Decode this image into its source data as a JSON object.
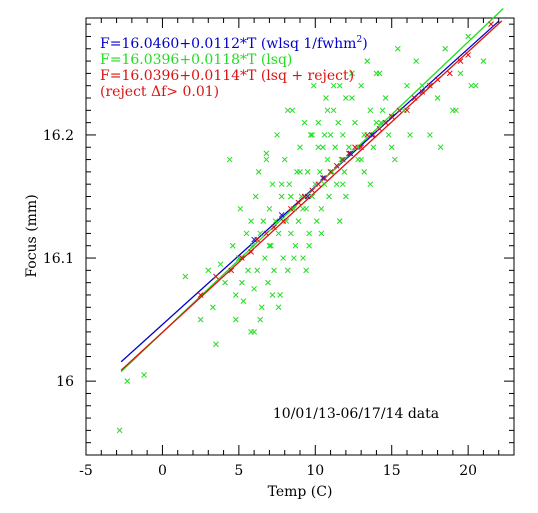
{
  "chart_data": {
    "type": "scatter",
    "xlabel": "Temp (C)",
    "ylabel": "Focus (mm)",
    "xlim": [
      -5,
      23
    ],
    "ylim": [
      15.94,
      16.295
    ],
    "x_ticks": [
      -5,
      0,
      5,
      10,
      15,
      20
    ],
    "y_ticks": [
      16,
      16.1,
      16.2
    ],
    "y_tick_labels": [
      "16",
      "16.1",
      "16.2"
    ],
    "legend": [
      {
        "text": "F=16.0460+0.0112*T (wlsq 1/fwhm",
        "sup": "2",
        "tail": ")",
        "color": "#0000cc"
      },
      {
        "text": "F=16.0396+0.0118*T (lsq)",
        "sup": "",
        "tail": "",
        "color": "#22dd22"
      },
      {
        "text": "F=16.0396+0.0114*T (lsq + reject)",
        "sup": "",
        "tail": "",
        "color": "#dd1111"
      },
      {
        "text": "(reject Δf> 0.01)",
        "sup": "",
        "tail": "",
        "color": "#dd1111"
      }
    ],
    "annotation": "10/01/13-06/17/14 data",
    "lines": [
      {
        "name": "F=16.0460+0.0112*T (wlsq 1/fwhm2)",
        "color": "#0000cc",
        "intercept": 16.046,
        "slope": 0.0112,
        "x_range": [
          -2.7,
          22
        ]
      },
      {
        "name": "F=16.0396+0.0118*T (lsq)",
        "color": "#22dd22",
        "intercept": 16.0396,
        "slope": 0.0118,
        "x_range": [
          -2.7,
          22.3
        ]
      },
      {
        "name": "F=16.0396+0.0114*T (lsq + reject)",
        "color": "#dd1111",
        "intercept": 16.0396,
        "slope": 0.0114,
        "x_range": [
          -2.7,
          22.2
        ]
      }
    ],
    "series": [
      {
        "color": "#22dd22",
        "x": [
          -2.8,
          -2.3,
          -1.2,
          1.5,
          2.5,
          3.0,
          3.3,
          3.8,
          4.1,
          4.4,
          4.8,
          5.0,
          5.1,
          5.3,
          5.5,
          5.6,
          5.8,
          5.9,
          6.0,
          6.1,
          6.2,
          6.3,
          6.4,
          6.5,
          6.6,
          6.7,
          6.8,
          6.9,
          7.0,
          7.1,
          7.2,
          7.3,
          7.4,
          7.5,
          7.6,
          7.7,
          7.8,
          7.9,
          8.0,
          8.1,
          8.2,
          8.3,
          8.4,
          8.5,
          8.6,
          8.7,
          8.8,
          8.9,
          9.0,
          9.1,
          9.2,
          9.3,
          9.4,
          9.5,
          9.6,
          9.7,
          9.8,
          9.9,
          10.0,
          10.1,
          10.2,
          10.3,
          10.4,
          10.5,
          10.6,
          10.7,
          10.8,
          10.9,
          11.0,
          11.1,
          11.2,
          11.3,
          11.4,
          11.5,
          11.6,
          11.7,
          11.8,
          11.9,
          12.0,
          12.2,
          12.4,
          12.6,
          12.8,
          13.0,
          13.2,
          13.4,
          13.6,
          13.8,
          14.0,
          14.3,
          14.6,
          15.0,
          15.4,
          15.8,
          16.2,
          16.6,
          17.0,
          17.5,
          18.0,
          18.5,
          19.0,
          19.5,
          20.0,
          20.5,
          21.0,
          5.2,
          6.4,
          7.0,
          7.8,
          8.6,
          9.2,
          9.8,
          10.4,
          11.2,
          12.0,
          12.8,
          13.6,
          14.4,
          15.2,
          16.0,
          4.6,
          5.8,
          6.8,
          7.6,
          8.4,
          9.0,
          9.6,
          10.2,
          10.8,
          11.6,
          12.4,
          13.2,
          14.0,
          14.8,
          6.0,
          7.2,
          8.2,
          9.4,
          10.6,
          11.8,
          13.0,
          14.2,
          3.5,
          4.8,
          18.2,
          19.2,
          20.2
        ],
        "y": [
          15.96,
          16.0,
          16.005,
          16.085,
          16.05,
          16.09,
          16.06,
          16.095,
          16.08,
          16.18,
          16.07,
          16.1,
          16.14,
          16.065,
          16.12,
          16.09,
          16.04,
          16.11,
          16.075,
          16.15,
          16.09,
          16.17,
          16.12,
          16.06,
          16.13,
          16.1,
          16.185,
          16.08,
          16.14,
          16.11,
          16.16,
          16.09,
          16.13,
          16.2,
          16.12,
          16.07,
          16.15,
          16.1,
          16.18,
          16.13,
          16.09,
          16.16,
          16.12,
          16.22,
          16.14,
          16.11,
          16.17,
          16.13,
          16.19,
          16.15,
          16.1,
          16.21,
          16.14,
          16.17,
          16.12,
          16.2,
          16.15,
          16.24,
          16.16,
          16.13,
          16.21,
          16.17,
          16.14,
          16.19,
          16.16,
          16.23,
          16.18,
          16.15,
          16.2,
          16.17,
          16.22,
          16.19,
          16.16,
          16.21,
          16.24,
          16.18,
          16.2,
          16.17,
          16.23,
          16.19,
          16.25,
          16.21,
          16.18,
          16.24,
          16.2,
          16.26,
          16.22,
          16.19,
          16.25,
          16.21,
          16.23,
          16.19,
          16.27,
          16.22,
          16.2,
          16.26,
          16.24,
          16.2,
          16.23,
          16.27,
          16.22,
          16.25,
          16.28,
          16.24,
          16.26,
          16.08,
          16.05,
          16.11,
          16.16,
          16.1,
          16.14,
          16.2,
          16.12,
          16.24,
          16.15,
          16.19,
          16.16,
          16.22,
          16.18,
          16.24,
          16.11,
          16.13,
          16.18,
          16.06,
          16.15,
          16.17,
          16.11,
          16.19,
          16.22,
          16.13,
          16.23,
          16.17,
          16.21,
          16.2,
          16.04,
          16.07,
          16.22,
          16.09,
          16.2,
          16.16,
          16.18,
          16.25,
          16.03,
          16.05,
          16.19,
          16.22,
          16.24
        ]
      },
      {
        "color": "#dd1111",
        "x": [
          2.5,
          3.5,
          4.5,
          5.2,
          5.8,
          6.2,
          6.8,
          7.3,
          7.9,
          8.4,
          8.9,
          9.3,
          9.8,
          10.2,
          10.6,
          11.0,
          11.4,
          11.8,
          12.2,
          12.6,
          13.0,
          13.4,
          13.8,
          14.2,
          14.6,
          15.0,
          15.5,
          16.0,
          16.5,
          17.0,
          17.5,
          18.0,
          18.8,
          19.5,
          20.0,
          21.5
        ],
        "y": [
          16.07,
          16.085,
          16.09,
          16.1,
          16.105,
          16.115,
          16.12,
          16.125,
          16.13,
          16.14,
          16.145,
          16.15,
          16.155,
          16.16,
          16.165,
          16.17,
          16.175,
          16.18,
          16.185,
          16.19,
          16.19,
          16.2,
          16.2,
          16.205,
          16.21,
          16.215,
          16.22,
          16.22,
          16.23,
          16.235,
          16.24,
          16.245,
          16.25,
          16.26,
          16.265,
          16.29
        ]
      },
      {
        "color": "#1a1acc",
        "x": [
          6.0,
          7.8,
          9.5,
          10.5,
          12.3,
          13.7
        ],
        "y": [
          16.115,
          16.135,
          16.15,
          16.165,
          16.185,
          16.2
        ]
      }
    ]
  }
}
